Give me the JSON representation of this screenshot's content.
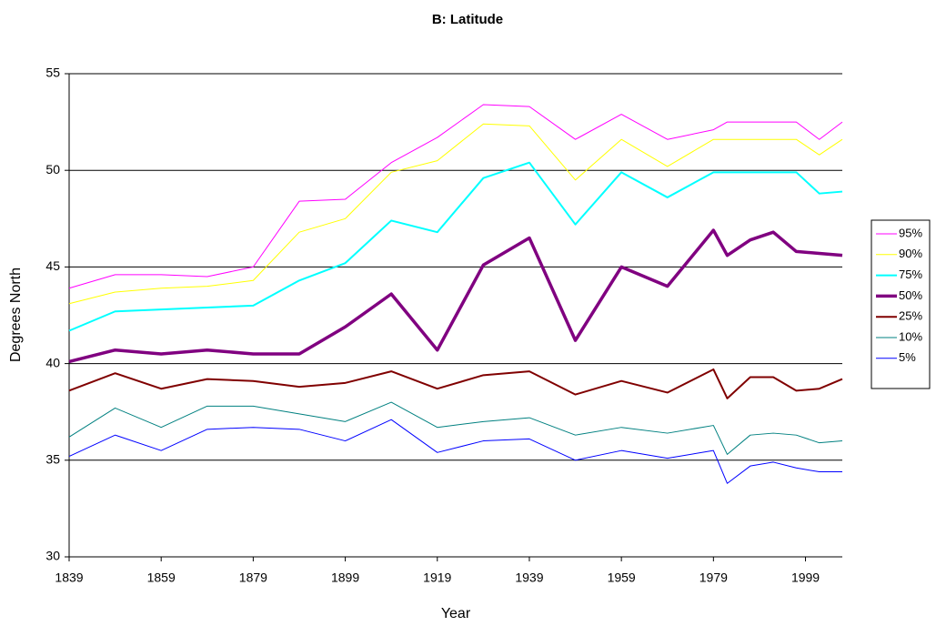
{
  "chart_data": {
    "type": "line",
    "title": "B: Latitude",
    "x_label": "Year",
    "y_label": "Degrees North",
    "x": [
      1839,
      1849,
      1859,
      1869,
      1879,
      1889,
      1899,
      1909,
      1919,
      1929,
      1939,
      1949,
      1959,
      1969,
      1979,
      1982,
      1987,
      1992,
      1997,
      2002,
      2007
    ],
    "xlim": [
      1839,
      2007
    ],
    "xticks": [
      1839,
      1859,
      1879,
      1899,
      1919,
      1939,
      1959,
      1979,
      1999
    ],
    "ylim": [
      30,
      55
    ],
    "yticks": [
      30,
      35,
      40,
      45,
      50,
      55
    ],
    "grid": true,
    "legend": "right",
    "series": [
      {
        "name": "95%",
        "color": "#ff00ff",
        "width": 1,
        "values": [
          43.9,
          44.6,
          44.6,
          44.5,
          45.0,
          48.4,
          48.5,
          50.4,
          51.7,
          53.4,
          53.3,
          51.6,
          52.9,
          51.6,
          52.1,
          52.5,
          52.5,
          52.5,
          52.5,
          51.6,
          52.5
        ]
      },
      {
        "name": "90%",
        "color": "#ffff00",
        "width": 1,
        "values": [
          43.1,
          43.7,
          43.9,
          44.0,
          44.3,
          46.8,
          47.5,
          49.9,
          50.5,
          52.4,
          52.3,
          49.5,
          51.6,
          50.2,
          51.6,
          51.6,
          51.6,
          51.6,
          51.6,
          50.8,
          51.6
        ]
      },
      {
        "name": "75%",
        "color": "#00ffff",
        "width": 2,
        "values": [
          41.7,
          42.7,
          42.8,
          42.9,
          43.0,
          44.3,
          45.2,
          47.4,
          46.8,
          49.6,
          50.4,
          47.2,
          49.9,
          48.6,
          49.9,
          49.9,
          49.9,
          49.9,
          49.9,
          48.8,
          48.9
        ]
      },
      {
        "name": "50%",
        "color": "#800080",
        "width": 3.5,
        "values": [
          40.1,
          40.7,
          40.5,
          40.7,
          40.5,
          40.5,
          41.9,
          43.6,
          40.7,
          45.1,
          46.5,
          41.2,
          45.0,
          44.0,
          46.9,
          45.6,
          46.4,
          46.8,
          45.8,
          45.7,
          45.6
        ]
      },
      {
        "name": "25%",
        "color": "#800000",
        "width": 2,
        "values": [
          38.6,
          39.5,
          38.7,
          39.2,
          39.1,
          38.8,
          39.0,
          39.6,
          38.7,
          39.4,
          39.6,
          38.4,
          39.1,
          38.5,
          39.7,
          38.2,
          39.3,
          39.3,
          38.6,
          38.7,
          39.2
        ]
      },
      {
        "name": "10%",
        "color": "#008080",
        "width": 1,
        "values": [
          36.2,
          37.7,
          36.7,
          37.8,
          37.8,
          37.4,
          37.0,
          38.0,
          36.7,
          37.0,
          37.2,
          36.3,
          36.7,
          36.4,
          36.8,
          35.3,
          36.3,
          36.4,
          36.3,
          35.9,
          36.0
        ]
      },
      {
        "name": "5%",
        "color": "#0000ff",
        "width": 1,
        "values": [
          35.2,
          36.3,
          35.5,
          36.6,
          36.7,
          36.6,
          36.0,
          37.1,
          35.4,
          36.0,
          36.1,
          35.0,
          35.5,
          35.1,
          35.5,
          33.8,
          34.7,
          34.9,
          34.6,
          34.4,
          34.4
        ]
      }
    ]
  }
}
